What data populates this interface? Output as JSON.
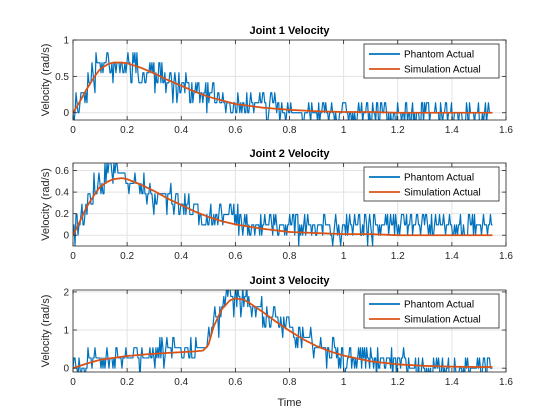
{
  "chart_data": [
    {
      "type": "line",
      "title": "Joint 1 Velocity",
      "xlabel": "",
      "ylabel": "Velocity (rad/s)",
      "xlim": [
        0,
        1.6
      ],
      "ylim": [
        -0.1,
        1
      ],
      "xticks": [
        0,
        0.2,
        0.4,
        0.6,
        0.8,
        1,
        1.2,
        1.4,
        1.6
      ],
      "yticks": [
        0,
        0.5,
        1
      ],
      "grid": true,
      "legend": "top-right",
      "series": [
        {
          "name": "Phantom Actual",
          "color": "#0072BD",
          "style": "noisy-quantized",
          "x": [
            0,
            0.02,
            0.05,
            0.08,
            0.1,
            0.13,
            0.15,
            0.18,
            0.2,
            0.25,
            0.3,
            0.35,
            0.4,
            0.45,
            0.5,
            0.55,
            0.6,
            0.7,
            0.8,
            0.9,
            1.0,
            1.1,
            1.2,
            1.3,
            1.4,
            1.5,
            1.55
          ],
          "y": [
            0.0,
            0.15,
            0.35,
            0.6,
            0.7,
            0.75,
            0.75,
            0.7,
            0.7,
            0.6,
            0.55,
            0.45,
            0.4,
            0.3,
            0.25,
            0.2,
            0.15,
            0.1,
            0.05,
            0.05,
            0.05,
            0.05,
            0.05,
            0.05,
            0.05,
            0.05,
            0.05
          ]
        },
        {
          "name": "Simulation Actual",
          "color": "#D95319",
          "style": "smooth",
          "x": [
            0,
            0.02,
            0.05,
            0.08,
            0.1,
            0.13,
            0.15,
            0.18,
            0.2,
            0.25,
            0.3,
            0.35,
            0.4,
            0.45,
            0.5,
            0.55,
            0.6,
            0.7,
            0.8,
            0.9,
            1.0,
            1.1,
            1.2,
            1.3,
            1.4,
            1.5,
            1.55
          ],
          "y": [
            0.0,
            0.12,
            0.32,
            0.5,
            0.6,
            0.67,
            0.69,
            0.69,
            0.68,
            0.62,
            0.54,
            0.45,
            0.37,
            0.29,
            0.22,
            0.17,
            0.12,
            0.07,
            0.04,
            0.02,
            0.01,
            0.01,
            0.0,
            0.0,
            0.0,
            0.0,
            0.0
          ]
        }
      ]
    },
    {
      "type": "line",
      "title": "Joint 2 Velocity",
      "xlabel": "",
      "ylabel": "Velocity (rad/s)",
      "xlim": [
        0,
        1.6
      ],
      "ylim": [
        -0.1,
        0.67
      ],
      "xticks": [
        0,
        0.2,
        0.4,
        0.6,
        0.8,
        1,
        1.2,
        1.4,
        1.6
      ],
      "yticks": [
        0,
        0.2,
        0.4,
        0.6
      ],
      "grid": true,
      "legend": "top-right",
      "series": [
        {
          "name": "Phantom Actual",
          "color": "#0072BD",
          "style": "noisy-quantized",
          "x": [
            0,
            0.02,
            0.05,
            0.08,
            0.1,
            0.13,
            0.15,
            0.18,
            0.2,
            0.25,
            0.3,
            0.35,
            0.4,
            0.45,
            0.5,
            0.55,
            0.6,
            0.7,
            0.8,
            0.9,
            1.0,
            1.1,
            1.2,
            1.3,
            1.4,
            1.5,
            1.55
          ],
          "y": [
            0.0,
            0.1,
            0.3,
            0.45,
            0.5,
            0.55,
            0.55,
            0.55,
            0.5,
            0.45,
            0.4,
            0.35,
            0.3,
            0.25,
            0.2,
            0.15,
            0.15,
            0.1,
            0.08,
            0.07,
            0.06,
            0.06,
            0.06,
            0.06,
            0.06,
            0.06,
            0.06
          ]
        },
        {
          "name": "Simulation Actual",
          "color": "#D95319",
          "style": "smooth",
          "x": [
            0,
            0.02,
            0.05,
            0.08,
            0.1,
            0.13,
            0.15,
            0.18,
            0.2,
            0.25,
            0.3,
            0.35,
            0.4,
            0.45,
            0.5,
            0.55,
            0.6,
            0.7,
            0.8,
            0.9,
            1.0,
            1.1,
            1.2,
            1.3,
            1.4,
            1.5,
            1.55
          ],
          "y": [
            0.0,
            0.1,
            0.26,
            0.38,
            0.45,
            0.5,
            0.52,
            0.53,
            0.52,
            0.47,
            0.41,
            0.34,
            0.28,
            0.22,
            0.17,
            0.13,
            0.1,
            0.06,
            0.03,
            0.02,
            0.01,
            0.01,
            0.0,
            0.0,
            0.0,
            0.0,
            0.0
          ]
        }
      ]
    },
    {
      "type": "line",
      "title": "Joint 3 Velocity",
      "xlabel": "Time",
      "ylabel": "Velocity (rad/s)",
      "xlim": [
        0,
        1.6
      ],
      "ylim": [
        -0.1,
        2.05
      ],
      "xticks": [
        0,
        0.2,
        0.4,
        0.6,
        0.8,
        1,
        1.2,
        1.4,
        1.6
      ],
      "yticks": [
        0,
        1,
        2
      ],
      "grid": true,
      "legend": "top-right",
      "series": [
        {
          "name": "Phantom Actual",
          "color": "#0072BD",
          "style": "noisy-quantized",
          "x": [
            0,
            0.05,
            0.1,
            0.2,
            0.3,
            0.4,
            0.45,
            0.48,
            0.5,
            0.52,
            0.55,
            0.58,
            0.6,
            0.63,
            0.65,
            0.7,
            0.75,
            0.8,
            0.85,
            0.9,
            0.95,
            1.0,
            1.1,
            1.2,
            1.3,
            1.4,
            1.5,
            1.55
          ],
          "y": [
            0.0,
            0.15,
            0.25,
            0.35,
            0.4,
            0.45,
            0.45,
            0.5,
            0.7,
            1.2,
            1.6,
            1.85,
            1.9,
            1.85,
            1.75,
            1.5,
            1.25,
            1.0,
            0.8,
            0.6,
            0.45,
            0.35,
            0.2,
            0.15,
            0.1,
            0.1,
            0.1,
            0.1
          ]
        },
        {
          "name": "Simulation Actual",
          "color": "#D95319",
          "style": "smooth",
          "x": [
            0,
            0.05,
            0.1,
            0.2,
            0.3,
            0.4,
            0.45,
            0.48,
            0.5,
            0.52,
            0.55,
            0.58,
            0.6,
            0.63,
            0.65,
            0.7,
            0.75,
            0.8,
            0.85,
            0.9,
            0.95,
            1.0,
            1.1,
            1.2,
            1.3,
            1.4,
            1.5,
            1.55
          ],
          "y": [
            0.0,
            0.12,
            0.22,
            0.32,
            0.38,
            0.42,
            0.44,
            0.46,
            0.6,
            1.1,
            1.55,
            1.78,
            1.83,
            1.8,
            1.72,
            1.48,
            1.22,
            0.98,
            0.76,
            0.58,
            0.44,
            0.33,
            0.18,
            0.1,
            0.06,
            0.04,
            0.03,
            0.03
          ]
        }
      ]
    }
  ]
}
